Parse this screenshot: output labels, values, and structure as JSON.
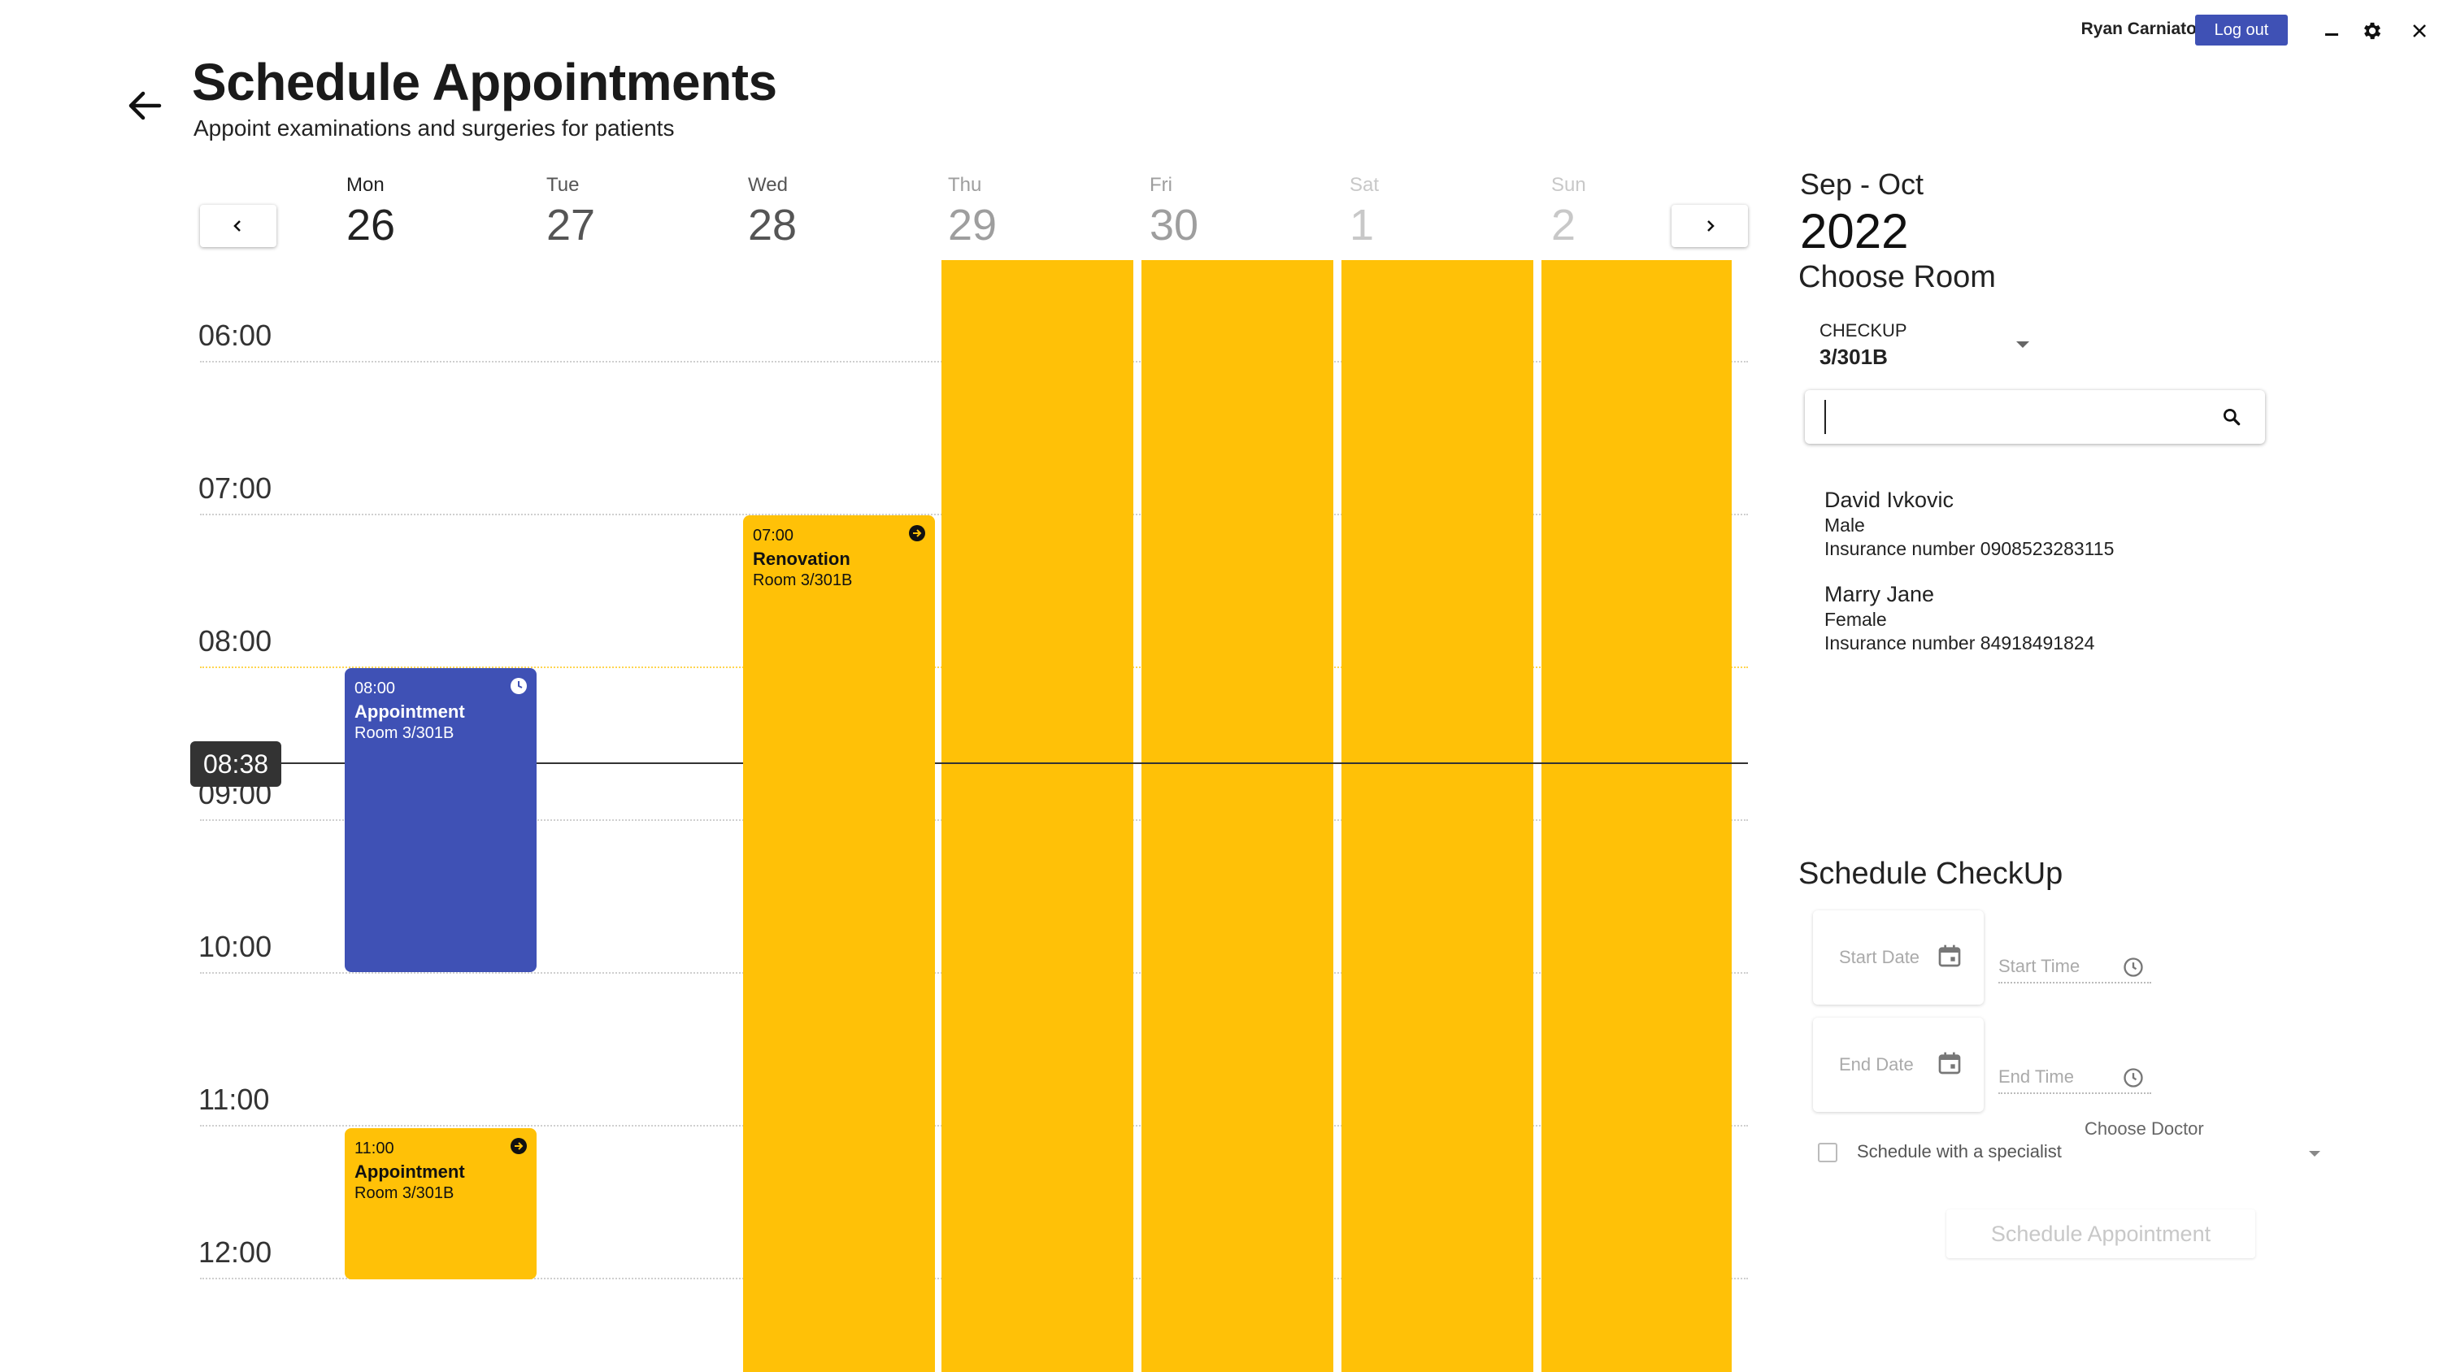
{
  "header": {
    "user_name": "Ryan Carniato",
    "logout_label": "Log out",
    "title": "Schedule Appointments",
    "subtitle": "Appoint examinations and surgeries for patients"
  },
  "calendar": {
    "days": [
      {
        "name": "Mon",
        "num": "26"
      },
      {
        "name": "Tue",
        "num": "27"
      },
      {
        "name": "Wed",
        "num": "28"
      },
      {
        "name": "Thu",
        "num": "29"
      },
      {
        "name": "Fri",
        "num": "30"
      },
      {
        "name": "Sat",
        "num": "1"
      },
      {
        "name": "Sun",
        "num": "2"
      }
    ],
    "hours": [
      "06:00",
      "07:00",
      "08:00",
      "09:00",
      "10:00",
      "11:00",
      "12:00"
    ],
    "current_time": "08:38",
    "events": [
      {
        "time": "08:00",
        "title": "Appointment",
        "room": "Room 3/301B",
        "icon": "clock-icon"
      },
      {
        "time": "07:00",
        "title": "Renovation",
        "room": "Room 3/301B",
        "icon": "arrow-circle-icon"
      },
      {
        "time": "11:00",
        "title": "Appointment",
        "room": "Room 3/301B",
        "icon": "arrow-circle-icon"
      }
    ],
    "colors": {
      "appointment": "#3f51b5",
      "busy": "#ffc107"
    }
  },
  "panel": {
    "period": "Sep - Oct",
    "year": "2022",
    "choose_room": "Choose Room",
    "room_type": "CHECKUP",
    "room_value": "3/301B",
    "search_value": "",
    "patients": [
      {
        "name": "David Ivkovic",
        "gender": "Male",
        "insurance": "Insurance number 0908523283115"
      },
      {
        "name": "Marry Jane",
        "gender": "Female",
        "insurance": "Insurance number 84918491824"
      }
    ],
    "schedule_title": "Schedule CheckUp",
    "start_date": "Start Date",
    "start_time": "Start Time",
    "end_date": "End Date",
    "end_time": "End Time",
    "specialist_label": "Schedule with a specialist",
    "doctor_label": "Choose Doctor",
    "submit_label": "Schedule Appointment"
  }
}
